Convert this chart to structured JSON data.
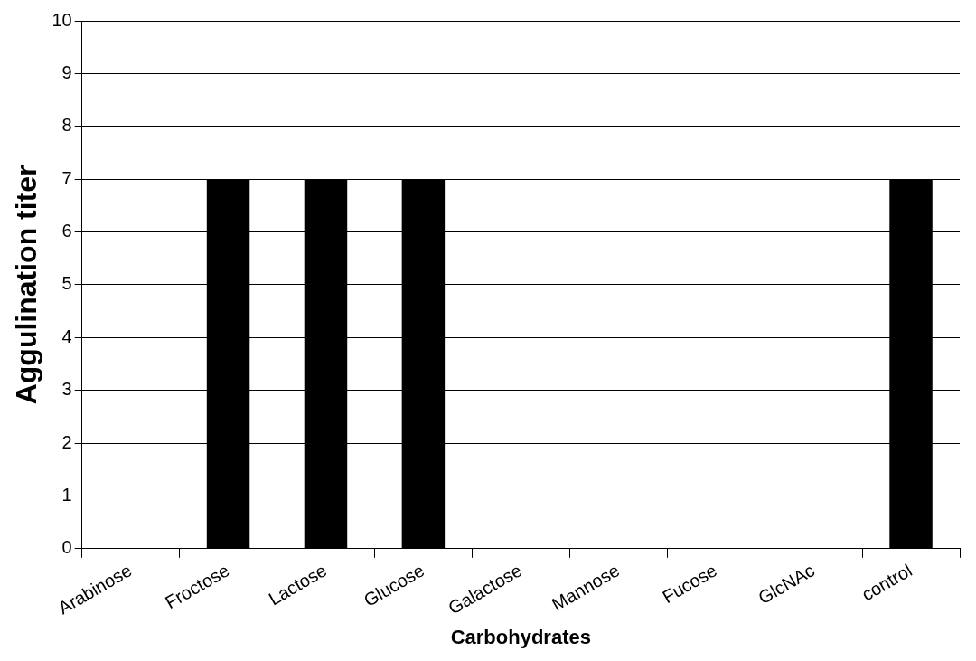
{
  "chart_data": {
    "type": "bar",
    "xlabel": "Carbohydrates",
    "ylabel": "Aggulination titer",
    "categories": [
      "Arabinose",
      "Froctose",
      "Lactose",
      "Glucose",
      "Galactose",
      "Mannose",
      "Fucose",
      "GlcNAc",
      "control"
    ],
    "values": [
      0,
      7,
      7,
      7,
      0,
      0,
      0,
      0,
      7
    ],
    "color": "#000000",
    "ylim": [
      0,
      10
    ],
    "yticks": [
      0,
      1,
      2,
      3,
      4,
      5,
      6,
      7,
      8,
      9,
      10
    ],
    "grid": "y",
    "legend": false
  }
}
